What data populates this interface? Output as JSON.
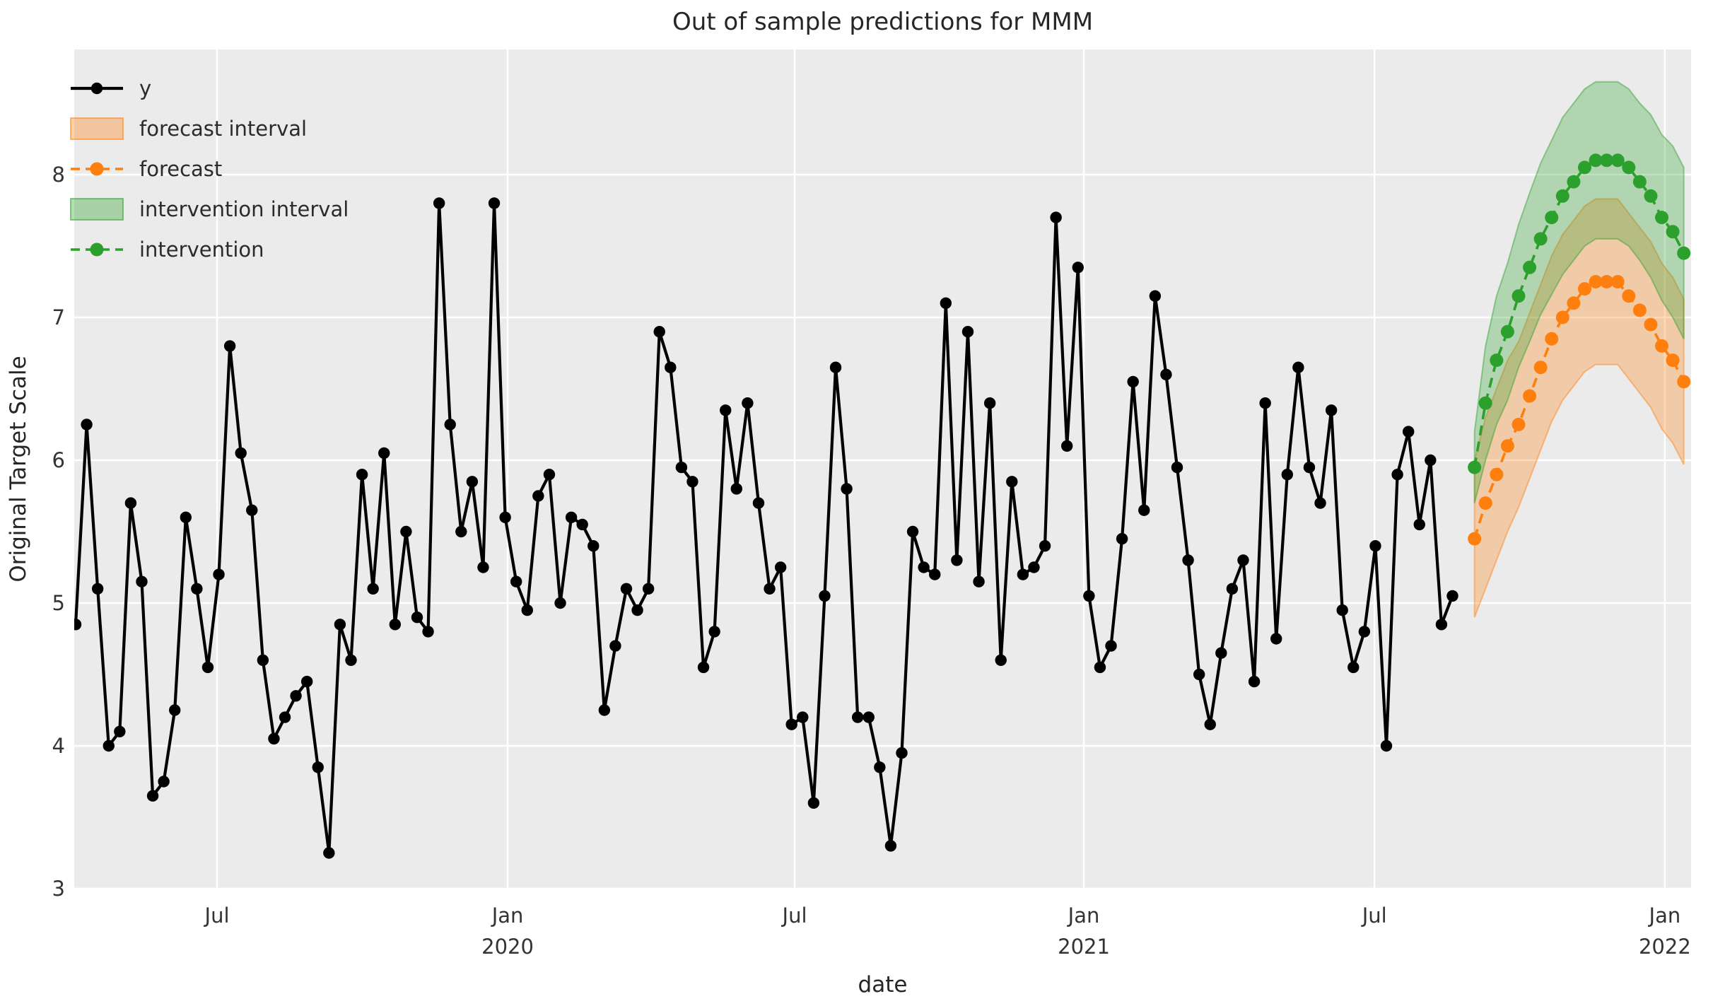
{
  "title": "Out of sample predictions for MMM",
  "axes": {
    "xlabel": "date",
    "ylabel": "Original Target Scale",
    "y_ticks": [
      "3",
      "4",
      "5",
      "6",
      "7",
      "8"
    ],
    "x_ticks": [
      {
        "label": "Jul",
        "year": "",
        "week": 12.84
      },
      {
        "label": "Jan",
        "year": "2020",
        "week": 39.22
      },
      {
        "label": "Jul",
        "year": "",
        "week": 65.28
      },
      {
        "label": "Jan",
        "year": "2021",
        "week": 91.53
      },
      {
        "label": "Jul",
        "year": "",
        "week": 117.92
      },
      {
        "label": "Jan",
        "year": "2022",
        "week": 144.28
      }
    ]
  },
  "legend": [
    {
      "label": "y",
      "swatch": "line",
      "color": "#000000"
    },
    {
      "label": "forecast interval",
      "swatch": "patch",
      "color": "#ff7f0e"
    },
    {
      "label": "forecast",
      "swatch": "dashline",
      "color": "#ff7f0e"
    },
    {
      "label": "intervention interval",
      "swatch": "patch",
      "color": "#2ca02c"
    },
    {
      "label": "intervention",
      "swatch": "dashline",
      "color": "#2ca02c"
    }
  ],
  "colors": {
    "observed": "#000000",
    "forecast": "#ff7f0e",
    "intervention": "#2ca02c",
    "plot_background": "#ebebeb",
    "grid": "#ffffff",
    "text": "#262626",
    "tick_text": "#333333",
    "band_opacity": 0.3
  },
  "chart_data": {
    "type": "line",
    "x_unit": "weeks",
    "x_tick_note": "weekly points; week 0 = first observed sample (approx Apr 2019), ticks per axes.x_ticks",
    "ylim": [
      3,
      8.9
    ],
    "grid": true,
    "legend_position": "upper-left",
    "series": [
      {
        "name": "y",
        "style": "solid-marker",
        "color": "#000000",
        "week_start": 0,
        "values": [
          4.85,
          6.25,
          5.1,
          4.0,
          4.1,
          5.7,
          5.15,
          3.65,
          3.75,
          4.25,
          5.6,
          5.1,
          4.55,
          5.2,
          6.8,
          6.05,
          5.65,
          4.6,
          4.05,
          4.2,
          4.35,
          4.45,
          3.85,
          3.25,
          4.85,
          4.6,
          5.9,
          5.1,
          6.05,
          4.85,
          5.5,
          4.9,
          4.8,
          7.8,
          6.25,
          5.5,
          5.85,
          5.25,
          7.8,
          5.6,
          5.15,
          4.95,
          5.75,
          5.9,
          5.0,
          5.6,
          5.55,
          5.4,
          4.25,
          4.7,
          5.1,
          4.95,
          5.1,
          6.9,
          6.65,
          5.95,
          5.85,
          4.55,
          4.8,
          6.35,
          5.8,
          6.4,
          5.7,
          5.1,
          5.25,
          4.15,
          4.2,
          3.6,
          5.05,
          6.65,
          5.8,
          4.2,
          4.2,
          3.85,
          3.3,
          3.95,
          5.5,
          5.25,
          5.2,
          7.1,
          5.3,
          6.9,
          5.15,
          6.4,
          4.6,
          5.85,
          5.2,
          5.25,
          5.4,
          7.7,
          6.1,
          7.35,
          5.05,
          4.55,
          4.7,
          5.45,
          6.55,
          5.65,
          7.15,
          6.6,
          5.95,
          5.3,
          4.5,
          4.15,
          4.65,
          5.1,
          5.3,
          4.45,
          6.4,
          4.75,
          5.9,
          6.65,
          5.95,
          5.7,
          6.35,
          4.95,
          4.55,
          4.8,
          5.4,
          4.0,
          5.9,
          6.2,
          5.55,
          6.0,
          4.85,
          5.05
        ]
      },
      {
        "name": "forecast",
        "style": "dashed-marker",
        "color": "#ff7f0e",
        "week_start": 127,
        "values": [
          5.45,
          5.7,
          5.9,
          6.1,
          6.25,
          6.45,
          6.65,
          6.85,
          7.0,
          7.1,
          7.2,
          7.25,
          7.25,
          7.25,
          7.15,
          7.05,
          6.95,
          6.8,
          6.7,
          6.55
        ]
      },
      {
        "name": "intervention",
        "style": "dashed-marker",
        "color": "#2ca02c",
        "week_start": 127,
        "values": [
          5.95,
          6.4,
          6.7,
          6.9,
          7.15,
          7.35,
          7.55,
          7.7,
          7.85,
          7.95,
          8.05,
          8.1,
          8.1,
          8.1,
          8.05,
          7.95,
          7.85,
          7.7,
          7.6,
          7.45
        ]
      }
    ],
    "bands": [
      {
        "name": "intervention interval",
        "color": "#2ca02c",
        "week_start": 127,
        "lower": [
          5.7,
          6.0,
          6.25,
          6.42,
          6.65,
          6.83,
          7.02,
          7.16,
          7.3,
          7.4,
          7.5,
          7.55,
          7.55,
          7.55,
          7.5,
          7.4,
          7.28,
          7.12,
          7.0,
          6.85
        ],
        "upper": [
          6.2,
          6.8,
          7.15,
          7.38,
          7.65,
          7.87,
          8.08,
          8.24,
          8.4,
          8.5,
          8.6,
          8.65,
          8.65,
          8.65,
          8.6,
          8.5,
          8.42,
          8.28,
          8.2,
          8.05
        ]
      },
      {
        "name": "forecast interval",
        "color": "#ff7f0e",
        "week_start": 127,
        "lower": [
          4.9,
          5.1,
          5.3,
          5.5,
          5.67,
          5.87,
          6.07,
          6.27,
          6.42,
          6.52,
          6.62,
          6.67,
          6.67,
          6.67,
          6.57,
          6.47,
          6.37,
          6.22,
          6.12,
          5.97
        ],
        "upper": [
          6.0,
          6.3,
          6.5,
          6.7,
          6.83,
          7.03,
          7.23,
          7.43,
          7.58,
          7.68,
          7.78,
          7.83,
          7.83,
          7.83,
          7.73,
          7.63,
          7.53,
          7.38,
          7.28,
          7.13
        ]
      }
    ]
  }
}
